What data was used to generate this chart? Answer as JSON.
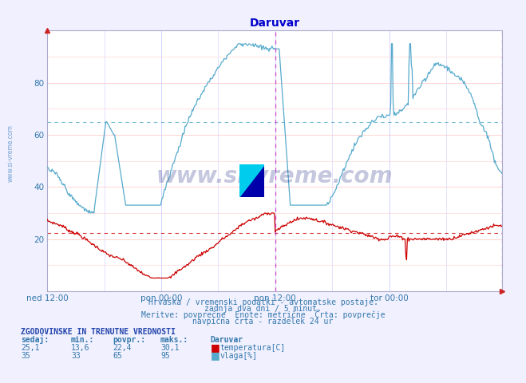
{
  "title": "Daruvar",
  "title_color": "#0000cc",
  "bg_color": "#f0f0ff",
  "plot_bg_color": "#ffffff",
  "ylim": [
    0,
    100
  ],
  "xlim_n": 576,
  "xtick_positions": [
    0,
    144,
    288,
    432
  ],
  "xtick_labels": [
    "ned 12:00",
    "pon 00:00",
    "pon 12:00",
    "tor 00:00"
  ],
  "ytick_positions": [
    20,
    40,
    60,
    80
  ],
  "temp_color": "#cc0000",
  "vlaga_color": "#55aacc",
  "temp_avg": 22.4,
  "vlaga_avg": 65,
  "vline_color": "#cc44cc",
  "vline_positions": [
    288,
    575
  ],
  "watermark": "www.si-vreme.com",
  "watermark_color": "#1a237e",
  "subtitle1": "Hrvaška / vremenski podatki - avtomatske postaje.",
  "subtitle2": "zadnja dva dni / 5 minut.",
  "subtitle3": "Meritve: povprečne  Enote: metrične  Črta: povprečje",
  "subtitle4": "navpična črta - razdelek 24 ur",
  "info_header": "ZGODOVINSKE IN TRENUTNE VREDNOSTI",
  "col_headers": [
    "sedaj:",
    "min.:",
    "povpr.:",
    "maks.:",
    "Daruvar"
  ],
  "temp_stats": [
    "25,1",
    "13,6",
    "22,4",
    "30,1"
  ],
  "vlaga_stats": [
    "35",
    "33",
    "65",
    "95"
  ],
  "font_color": "#3377aa",
  "grid_h_color": "#ffcccc",
  "grid_v_color": "#ccccff",
  "spine_color": "#aaaacc",
  "side_watermark": "www.si-vreme.com",
  "side_watermark_color": "#6699cc"
}
